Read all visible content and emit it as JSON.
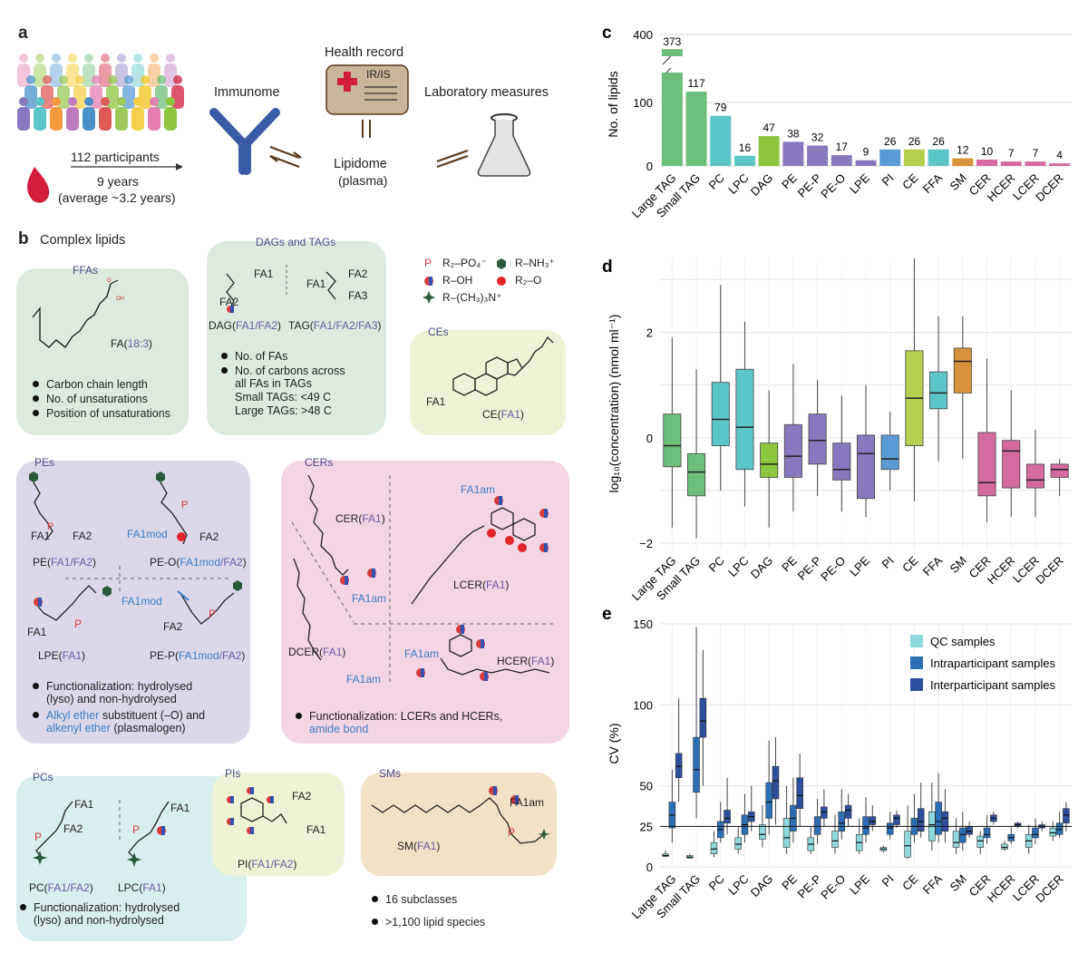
{
  "panel_a": {
    "label": "a",
    "participants": "112 participants",
    "years": "9 years",
    "average": "(average ~3.2 years)",
    "immunome": "Immunome",
    "health_record": "Health record",
    "ir_is": "IR/IS",
    "laboratory": "Laboratory measures",
    "lipidome": "Lipidome",
    "plasma": "(plasma)"
  },
  "panel_b": {
    "label": "b",
    "title": "Complex lipids",
    "ffas": {
      "title": "FFAs",
      "fa": "FA(",
      "fa_sub": "18:3",
      "fa_close": ")",
      "bullets": [
        "Carbon chain length",
        "No. of unsaturations",
        "Position of unsaturations"
      ]
    },
    "dags": {
      "title": "DAGs and TAGs",
      "fa1": "FA1",
      "fa2": "FA2",
      "fa3": "FA3",
      "dag": "DAG(",
      "dag_sub": "FA1/FA2",
      "tag": "TAG(",
      "tag_sub": "FA1/FA2/FA3",
      "bullet1": "No. of FAs",
      "bullet2": "No. of carbons across",
      "bullet2b": "all FAs in TAGs",
      "small_tags": "Small TAGs:  <49 C",
      "large_tags": "Large TAGs:  >48 C"
    },
    "legend": {
      "p": "P",
      "po4": "R₂–PO₄⁻",
      "nh3": "R–NH₃⁺",
      "oh": "R–OH",
      "r2o": "R₂–O",
      "n": "R–(CH₃)₃N⁺"
    },
    "ces": {
      "title": "CEs",
      "fa1": "FA1",
      "ce": "CE(",
      "ce_sub": "FA1"
    },
    "pes": {
      "title": "PEs",
      "pe": "PE(",
      "pe_sub": "FA1/FA2",
      "peo": "PE-O(",
      "peo_sub1": "FA1mod",
      "peo_sub2": "/FA2",
      "lpe": "LPE(",
      "lpe_sub": "FA1",
      "pep": "PE-P(",
      "pep_sub1": "FA1mod",
      "pep_sub2": "/FA2",
      "fa1": "FA1",
      "fa2": "FA2",
      "fa1mod": "FA1mod",
      "p": "P",
      "bullet1a": "Functionalization: hydrolysed",
      "bullet1b": "(lyso) and non-hydrolysed",
      "bullet2a": "Alkyl ether",
      "bullet2b": " substituent (–O) and",
      "bullet2c": "alkenyl ether",
      "bullet2d": " (plasmalogen)"
    },
    "cers": {
      "title": "CERs",
      "cer": "CER(",
      "cer_sub": "FA1",
      "fa1am": "FA1am",
      "lcer": "LCER(",
      "lcer_sub": "FA1",
      "dcer": "DCER(",
      "dcer_sub": "FA1",
      "hcer": "HCER(",
      "hcer_sub": "FA1",
      "bullet_a": "Functionalization: LCERs and HCERs,",
      "bullet_b": "amide bond"
    },
    "pcs": {
      "title": "PCs",
      "fa1": "FA1",
      "fa2": "FA2",
      "p": "P",
      "pc": "PC(",
      "pc_sub": "FA1/FA2",
      "lpc": "LPC(",
      "lpc_sub": "FA1",
      "bullet_a": "Functionalization: hydrolysed",
      "bullet_b": "(lyso) and non-hydrolysed"
    },
    "pis": {
      "title": "PIs",
      "fa1": "FA1",
      "fa2": "FA2",
      "pi": "PI(",
      "pi_sub": "FA1/FA2"
    },
    "sms": {
      "title": "SMs",
      "fa1am": "FA1am",
      "p": "P",
      "sm": "SM(",
      "sm_sub": "FA1"
    },
    "summary": [
      "16 subclasses",
      ">1,100 lipid species"
    ]
  },
  "colors": {
    "green": "#6bbf7a",
    "teal": "#5bc6c8",
    "lime": "#8cc63f",
    "purple": "#8878be",
    "blue": "#5b9bd5",
    "olive": "#b5cf4e",
    "orange": "#d9923c",
    "pink": "#d56aa0"
  },
  "chart_data": [
    {
      "panel": "c",
      "type": "bar",
      "ylabel": "No. of lipids",
      "ylim_lower": [
        0,
        150
      ],
      "ylim_upper": [
        360,
        400
      ],
      "yticks": [
        "0",
        "100",
        "400"
      ],
      "categories": [
        "Large TAG",
        "Small TAG",
        "PC",
        "LPC",
        "DAG",
        "PE",
        "PE-P",
        "PE-O",
        "LPE",
        "PI",
        "CE",
        "FFA",
        "SM",
        "CER",
        "HCER",
        "LCER",
        "DCER"
      ],
      "values": [
        373,
        117,
        79,
        16,
        47,
        38,
        32,
        17,
        9,
        26,
        26,
        26,
        12,
        10,
        7,
        7,
        4
      ],
      "data_labels": [
        "373",
        "117",
        "79",
        "16",
        "47",
        "38",
        "32",
        "17",
        "9",
        "26",
        "26",
        "26",
        "12",
        "10",
        "7",
        "7",
        "4"
      ],
      "colors": [
        "#6bbf7a",
        "#6bbf7a",
        "#5bc6c8",
        "#5bc6c8",
        "#8cc63f",
        "#8878be",
        "#8878be",
        "#8878be",
        "#8878be",
        "#5b9bd5",
        "#b5cf4e",
        "#5bc6c8",
        "#d9923c",
        "#d56aa0",
        "#d56aa0",
        "#d56aa0",
        "#d56aa0"
      ]
    },
    {
      "panel": "d",
      "type": "box",
      "ylabel": "log₁₀(concentration) (nmol ml⁻¹)",
      "ylim": [
        -2.1,
        3.4
      ],
      "yticks": [
        "−2",
        "0",
        "2"
      ],
      "categories": [
        "Large TAG",
        "Small TAG",
        "PC",
        "LPC",
        "DAG",
        "PE",
        "PE-P",
        "PE-O",
        "LPE",
        "PI",
        "CE",
        "FFA",
        "SM",
        "CER",
        "HCER",
        "LCER",
        "DCER"
      ],
      "boxes": [
        {
          "low": -1.7,
          "q1": -0.55,
          "median": -0.15,
          "q3": 0.45,
          "high": 1.9
        },
        {
          "low": -1.9,
          "q1": -1.1,
          "median": -0.65,
          "q3": -0.3,
          "high": 1.3
        },
        {
          "low": -1.0,
          "q1": -0.15,
          "median": 0.35,
          "q3": 1.05,
          "high": 2.9
        },
        {
          "low": -1.3,
          "q1": -0.6,
          "median": 0.2,
          "q3": 1.3,
          "high": 2.2
        },
        {
          "low": -1.7,
          "q1": -0.75,
          "median": -0.5,
          "q3": -0.1,
          "high": 0.9
        },
        {
          "low": -1.4,
          "q1": -0.75,
          "median": -0.35,
          "q3": 0.25,
          "high": 1.4
        },
        {
          "low": -1.1,
          "q1": -0.5,
          "median": -0.05,
          "q3": 0.45,
          "high": 1.1
        },
        {
          "low": -1.4,
          "q1": -0.8,
          "median": -0.6,
          "q3": -0.1,
          "high": 0.8
        },
        {
          "low": -1.5,
          "q1": -1.15,
          "median": -0.3,
          "q3": 0.05,
          "high": 1.0
        },
        {
          "low": -1.0,
          "q1": -0.6,
          "median": -0.4,
          "q3": 0.05,
          "high": 0.5
        },
        {
          "low": -1.2,
          "q1": -0.15,
          "median": 0.75,
          "q3": 1.65,
          "high": 3.4
        },
        {
          "low": -0.45,
          "q1": 0.55,
          "median": 0.85,
          "q3": 1.25,
          "high": 2.3
        },
        {
          "low": -0.4,
          "q1": 0.85,
          "median": 1.45,
          "q3": 1.7,
          "high": 2.3
        },
        {
          "low": -1.6,
          "q1": -1.1,
          "median": -0.85,
          "q3": 0.1,
          "high": 1.5
        },
        {
          "low": -1.5,
          "q1": -0.95,
          "median": -0.25,
          "q3": -0.05,
          "high": 0.9
        },
        {
          "low": -1.5,
          "q1": -0.95,
          "median": -0.8,
          "q3": -0.5,
          "high": 0.15
        },
        {
          "low": -1.1,
          "q1": -0.75,
          "median": -0.6,
          "q3": -0.5,
          "high": -0.4
        }
      ],
      "colors": [
        "#6bbf7a",
        "#6bbf7a",
        "#5bc6c8",
        "#5bc6c8",
        "#8cc63f",
        "#8878be",
        "#8878be",
        "#8878be",
        "#8878be",
        "#5b9bd5",
        "#b5cf4e",
        "#5bc6c8",
        "#d9923c",
        "#d56aa0",
        "#d56aa0",
        "#d56aa0",
        "#d56aa0"
      ]
    },
    {
      "panel": "e",
      "type": "box",
      "ylabel": "CV (%)",
      "ylim": [
        0,
        150
      ],
      "yticks": [
        "0",
        "25",
        "50",
        "100",
        "150"
      ],
      "reference_line": 25,
      "categories": [
        "Large TAG",
        "Small TAG",
        "PC",
        "LPC",
        "DAG",
        "PE",
        "PE-P",
        "PE-O",
        "LPE",
        "PI",
        "CE",
        "FFA",
        "SM",
        "CER",
        "HCER",
        "LCER",
        "DCER"
      ],
      "legend": [
        "QC samples",
        "Intraparticipant samples",
        "Interparticipant samples"
      ],
      "series_colors": [
        "#8fd8dc",
        "#2d6fb5",
        "#2e4f9c"
      ],
      "groups": [
        [
          {
            "low": 6,
            "q1": 6.5,
            "median": 7,
            "q3": 8,
            "high": 10
          },
          {
            "low": 15,
            "q1": 24,
            "median": 32,
            "q3": 40,
            "high": 60
          },
          {
            "low": 40,
            "q1": 55,
            "median": 62,
            "q3": 70,
            "high": 104
          }
        ],
        [
          {
            "low": 5,
            "q1": 5.5,
            "median": 6,
            "q3": 7,
            "high": 8
          },
          {
            "low": 30,
            "q1": 46,
            "median": 60,
            "q3": 80,
            "high": 148
          },
          {
            "low": 50,
            "q1": 80,
            "median": 90,
            "q3": 104,
            "high": 134
          }
        ],
        [
          {
            "low": 6,
            "q1": 8,
            "median": 11,
            "q3": 15,
            "high": 22
          },
          {
            "low": 15,
            "q1": 18,
            "median": 23,
            "q3": 28,
            "high": 40
          },
          {
            "low": 20,
            "q1": 27,
            "median": 30,
            "q3": 35,
            "high": 55
          }
        ],
        [
          {
            "low": 8,
            "q1": 11,
            "median": 14,
            "q3": 18,
            "high": 25
          },
          {
            "low": 15,
            "q1": 20,
            "median": 26,
            "q3": 32,
            "high": 45
          },
          {
            "low": 22,
            "q1": 28,
            "median": 31,
            "q3": 34,
            "high": 50
          }
        ],
        [
          {
            "low": 12,
            "q1": 17,
            "median": 20,
            "q3": 26,
            "high": 38
          },
          {
            "low": 20,
            "q1": 30,
            "median": 40,
            "q3": 52,
            "high": 78
          },
          {
            "low": 26,
            "q1": 42,
            "median": 53,
            "q3": 62,
            "high": 80
          }
        ],
        [
          {
            "low": 8,
            "q1": 12,
            "median": 18,
            "q3": 30,
            "high": 50
          },
          {
            "low": 15,
            "q1": 22,
            "median": 30,
            "q3": 38,
            "high": 55
          },
          {
            "low": 25,
            "q1": 36,
            "median": 44,
            "q3": 55,
            "high": 70
          }
        ],
        [
          {
            "low": 8,
            "q1": 10,
            "median": 14,
            "q3": 18,
            "high": 25
          },
          {
            "low": 14,
            "q1": 20,
            "median": 25,
            "q3": 31,
            "high": 42
          },
          {
            "low": 25,
            "q1": 30,
            "median": 34,
            "q3": 37,
            "high": 48
          }
        ],
        [
          {
            "low": 8,
            "q1": 12,
            "median": 16,
            "q3": 22,
            "high": 32
          },
          {
            "low": 17,
            "q1": 22,
            "median": 27,
            "q3": 34,
            "high": 48
          },
          {
            "low": 25,
            "q1": 30,
            "median": 35,
            "q3": 38,
            "high": 45
          }
        ],
        [
          {
            "low": 8,
            "q1": 10,
            "median": 15,
            "q3": 20,
            "high": 30
          },
          {
            "low": 15,
            "q1": 20,
            "median": 24,
            "q3": 31,
            "high": 43
          },
          {
            "low": 22,
            "q1": 26,
            "median": 28,
            "q3": 31,
            "high": 38
          }
        ],
        [
          {
            "low": 9,
            "q1": 10,
            "median": 11,
            "q3": 12,
            "high": 13
          },
          {
            "low": 17,
            "q1": 20,
            "median": 24,
            "q3": 27,
            "high": 34
          },
          {
            "low": 24,
            "q1": 26,
            "median": 30,
            "q3": 32,
            "high": 35
          }
        ],
        [
          {
            "low": 5,
            "q1": 6,
            "median": 13,
            "q3": 22,
            "high": 38
          },
          {
            "low": 15,
            "q1": 20,
            "median": 25,
            "q3": 30,
            "high": 45
          },
          {
            "low": 18,
            "q1": 22,
            "median": 28,
            "q3": 36,
            "high": 52
          }
        ],
        [
          {
            "low": 10,
            "q1": 16,
            "median": 26,
            "q3": 34,
            "high": 52
          },
          {
            "low": 15,
            "q1": 20,
            "median": 28,
            "q3": 40,
            "high": 58
          },
          {
            "low": 15,
            "q1": 22,
            "median": 30,
            "q3": 34,
            "high": 48
          }
        ],
        [
          {
            "low": 8,
            "q1": 12,
            "median": 15,
            "q3": 22,
            "high": 30
          },
          {
            "low": 10,
            "q1": 15,
            "median": 20,
            "q3": 24,
            "high": 34
          },
          {
            "low": 18,
            "q1": 20,
            "median": 22,
            "q3": 25,
            "high": 28
          }
        ],
        [
          {
            "low": 8,
            "q1": 12,
            "median": 16,
            "q3": 19,
            "high": 22
          },
          {
            "low": 14,
            "q1": 18,
            "median": 20,
            "q3": 24,
            "high": 32
          },
          {
            "low": 26,
            "q1": 28,
            "median": 30,
            "q3": 32,
            "high": 34
          }
        ],
        [
          {
            "low": 10,
            "q1": 11,
            "median": 12,
            "q3": 14,
            "high": 16
          },
          {
            "low": 14,
            "q1": 16,
            "median": 18,
            "q3": 20,
            "high": 25
          },
          {
            "low": 24,
            "q1": 25,
            "median": 26,
            "q3": 27,
            "high": 28
          }
        ],
        [
          {
            "low": 8,
            "q1": 12,
            "median": 16,
            "q3": 20,
            "high": 26
          },
          {
            "low": 14,
            "q1": 18,
            "median": 20,
            "q3": 24,
            "high": 30
          },
          {
            "low": 22,
            "q1": 24,
            "median": 25,
            "q3": 26,
            "high": 28
          }
        ],
        [
          {
            "low": 16,
            "q1": 19,
            "median": 21,
            "q3": 24,
            "high": 28
          },
          {
            "low": 18,
            "q1": 20,
            "median": 23,
            "q3": 27,
            "high": 34
          },
          {
            "low": 22,
            "q1": 27,
            "median": 32,
            "q3": 36,
            "high": 40
          }
        ]
      ]
    }
  ]
}
